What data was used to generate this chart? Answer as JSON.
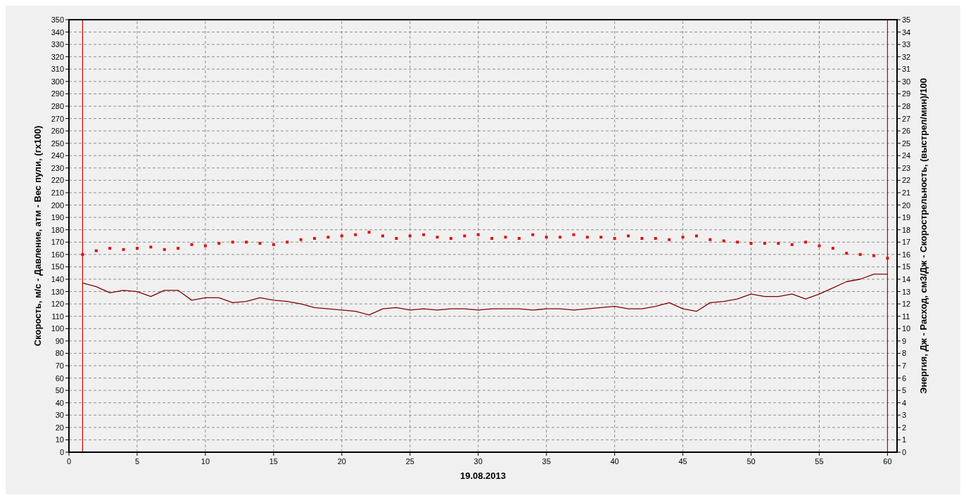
{
  "chart_data": {
    "type": "scatter",
    "xlabel": "19.08.2013",
    "ylabel": "Скорость, м/с  - Давление, атм - Вес пули, (гх100)",
    "y2label": "Энергия, Дж  -  Расход, см3/Дж - Скорострельность, (выстрел/мин)/100",
    "x": [
      1,
      2,
      3,
      4,
      5,
      6,
      7,
      8,
      9,
      10,
      11,
      12,
      13,
      14,
      15,
      16,
      17,
      18,
      19,
      20,
      21,
      22,
      23,
      24,
      25,
      26,
      27,
      28,
      29,
      30,
      31,
      32,
      33,
      34,
      35,
      36,
      37,
      38,
      39,
      40,
      41,
      42,
      43,
      44,
      45,
      46,
      47,
      48,
      49,
      50,
      51,
      52,
      53,
      54,
      55,
      56,
      57,
      58,
      59,
      60
    ],
    "xlim": [
      0,
      60.7
    ],
    "xticks": [
      0,
      5,
      10,
      15,
      20,
      25,
      30,
      35,
      40,
      45,
      50,
      55,
      60
    ],
    "ylim": [
      0,
      350
    ],
    "yticks": [
      0,
      10,
      20,
      30,
      40,
      50,
      60,
      70,
      80,
      90,
      100,
      110,
      120,
      130,
      140,
      150,
      160,
      170,
      180,
      190,
      200,
      210,
      220,
      230,
      240,
      250,
      260,
      270,
      280,
      290,
      300,
      310,
      320,
      330,
      340,
      350
    ],
    "y2lim": [
      0,
      35
    ],
    "y2ticks": [
      0,
      1,
      2,
      3,
      4,
      5,
      6,
      7,
      8,
      9,
      10,
      11,
      12,
      13,
      14,
      15,
      16,
      17,
      18,
      19,
      20,
      21,
      22,
      23,
      24,
      25,
      26,
      27,
      28,
      29,
      30,
      31,
      32,
      33,
      34,
      35
    ],
    "grid": true,
    "series": [
      {
        "marker": "square",
        "color": "#dd1111",
        "values": [
          160,
          163,
          165,
          164,
          165,
          166,
          164,
          165,
          168,
          167,
          169,
          170,
          170,
          169,
          168,
          170,
          172,
          173,
          174,
          175,
          176,
          178,
          175,
          173,
          175,
          176,
          174,
          173,
          175,
          176,
          173,
          174,
          173,
          176,
          174,
          174,
          176,
          174,
          174,
          173,
          175,
          173,
          173,
          172,
          174,
          175,
          172,
          171,
          170,
          169,
          169,
          169,
          168,
          170,
          167,
          165,
          161,
          160,
          159,
          157
        ]
      },
      {
        "type": "line",
        "axis": "y2",
        "color": "#800000",
        "values": [
          13.7,
          13.4,
          12.9,
          13.1,
          13.0,
          12.6,
          13.1,
          13.1,
          12.3,
          12.5,
          12.5,
          12.1,
          12.2,
          12.5,
          12.3,
          12.2,
          12.0,
          11.7,
          11.6,
          11.5,
          11.4,
          11.1,
          11.6,
          11.7,
          11.5,
          11.6,
          11.5,
          11.6,
          11.6,
          11.5,
          11.6,
          11.6,
          11.6,
          11.5,
          11.6,
          11.6,
          11.5,
          11.6,
          11.7,
          11.8,
          11.6,
          11.6,
          11.8,
          12.1,
          11.6,
          11.4,
          12.1,
          12.2,
          12.4,
          12.8,
          12.6,
          12.6,
          12.8,
          12.4,
          12.8,
          13.3,
          13.8,
          14.0,
          14.4,
          14.4
        ]
      }
    ],
    "ref_lines": [
      {
        "axis": "x",
        "value": 1,
        "color": "#cc0000"
      },
      {
        "axis": "x",
        "value": 60,
        "color": "#cc0000"
      }
    ]
  }
}
